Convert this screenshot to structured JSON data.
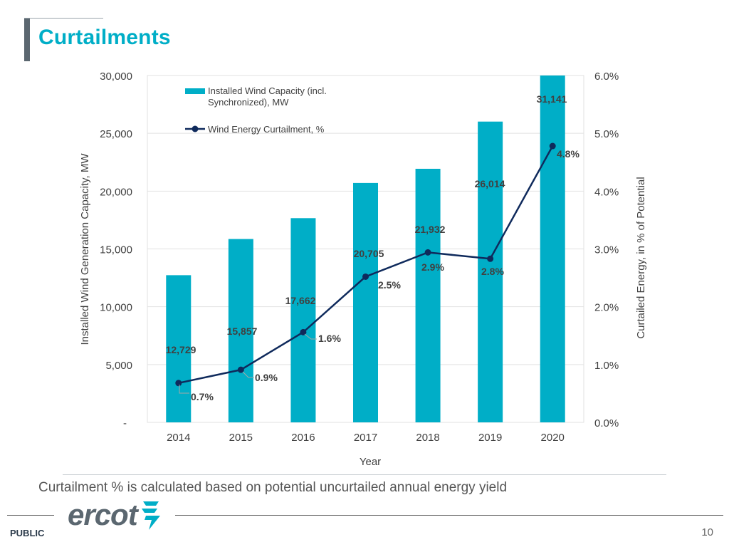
{
  "slide": {
    "title": "Curtailments",
    "note": "Curtailment % is calculated based on potential uncurtailed annual energy yield",
    "footer_label": "PUBLIC",
    "page_number": "10",
    "logo_text": "ercot"
  },
  "colors": {
    "bar": "#00aec7",
    "line": "#0f2a5c",
    "title": "#00aec7",
    "grid": "#e2e2e2"
  },
  "chart_data": {
    "type": "bar+line",
    "categories": [
      "2014",
      "2015",
      "2016",
      "2017",
      "2018",
      "2019",
      "2020"
    ],
    "series": [
      {
        "name": "Installed Wind Capacity (incl. Synchronized), MW",
        "legend_lines": [
          "Installed Wind Capacity (incl.",
          "Synchronized), MW"
        ],
        "type": "bar",
        "axis": "left",
        "values": [
          12729,
          15857,
          17662,
          20705,
          21932,
          26014,
          31141
        ],
        "labels": [
          "12,729",
          "15,857",
          "17,662",
          "20,705",
          "21,932",
          "26,014",
          "31,141"
        ]
      },
      {
        "name": "Wind Energy Curtailment, %",
        "type": "line",
        "axis": "right",
        "values": [
          0.7,
          0.9,
          1.6,
          2.5,
          2.9,
          2.8,
          4.8
        ],
        "plot_values": [
          0.68,
          0.91,
          1.56,
          2.52,
          2.94,
          2.83,
          4.78
        ],
        "labels": [
          "0.7%",
          "0.9%",
          "1.6%",
          "2.5%",
          "2.9%",
          "2.8%",
          "4.8%"
        ]
      }
    ],
    "xlabel": "Year",
    "ylabel_left": "Installed Wind Generation Capacity, MW",
    "ylabel_right": "Curtailed Energy, in % of Potential",
    "ylim_left": [
      0,
      30000
    ],
    "ylim_right": [
      0,
      6
    ],
    "left_ticks": [
      "-",
      "5,000",
      "10,000",
      "15,000",
      "20,000",
      "25,000",
      "30,000"
    ],
    "right_ticks": [
      "0.0%",
      "1.0%",
      "2.0%",
      "3.0%",
      "4.0%",
      "5.0%",
      "6.0%"
    ],
    "grid": true,
    "legend_position": "top-left"
  }
}
